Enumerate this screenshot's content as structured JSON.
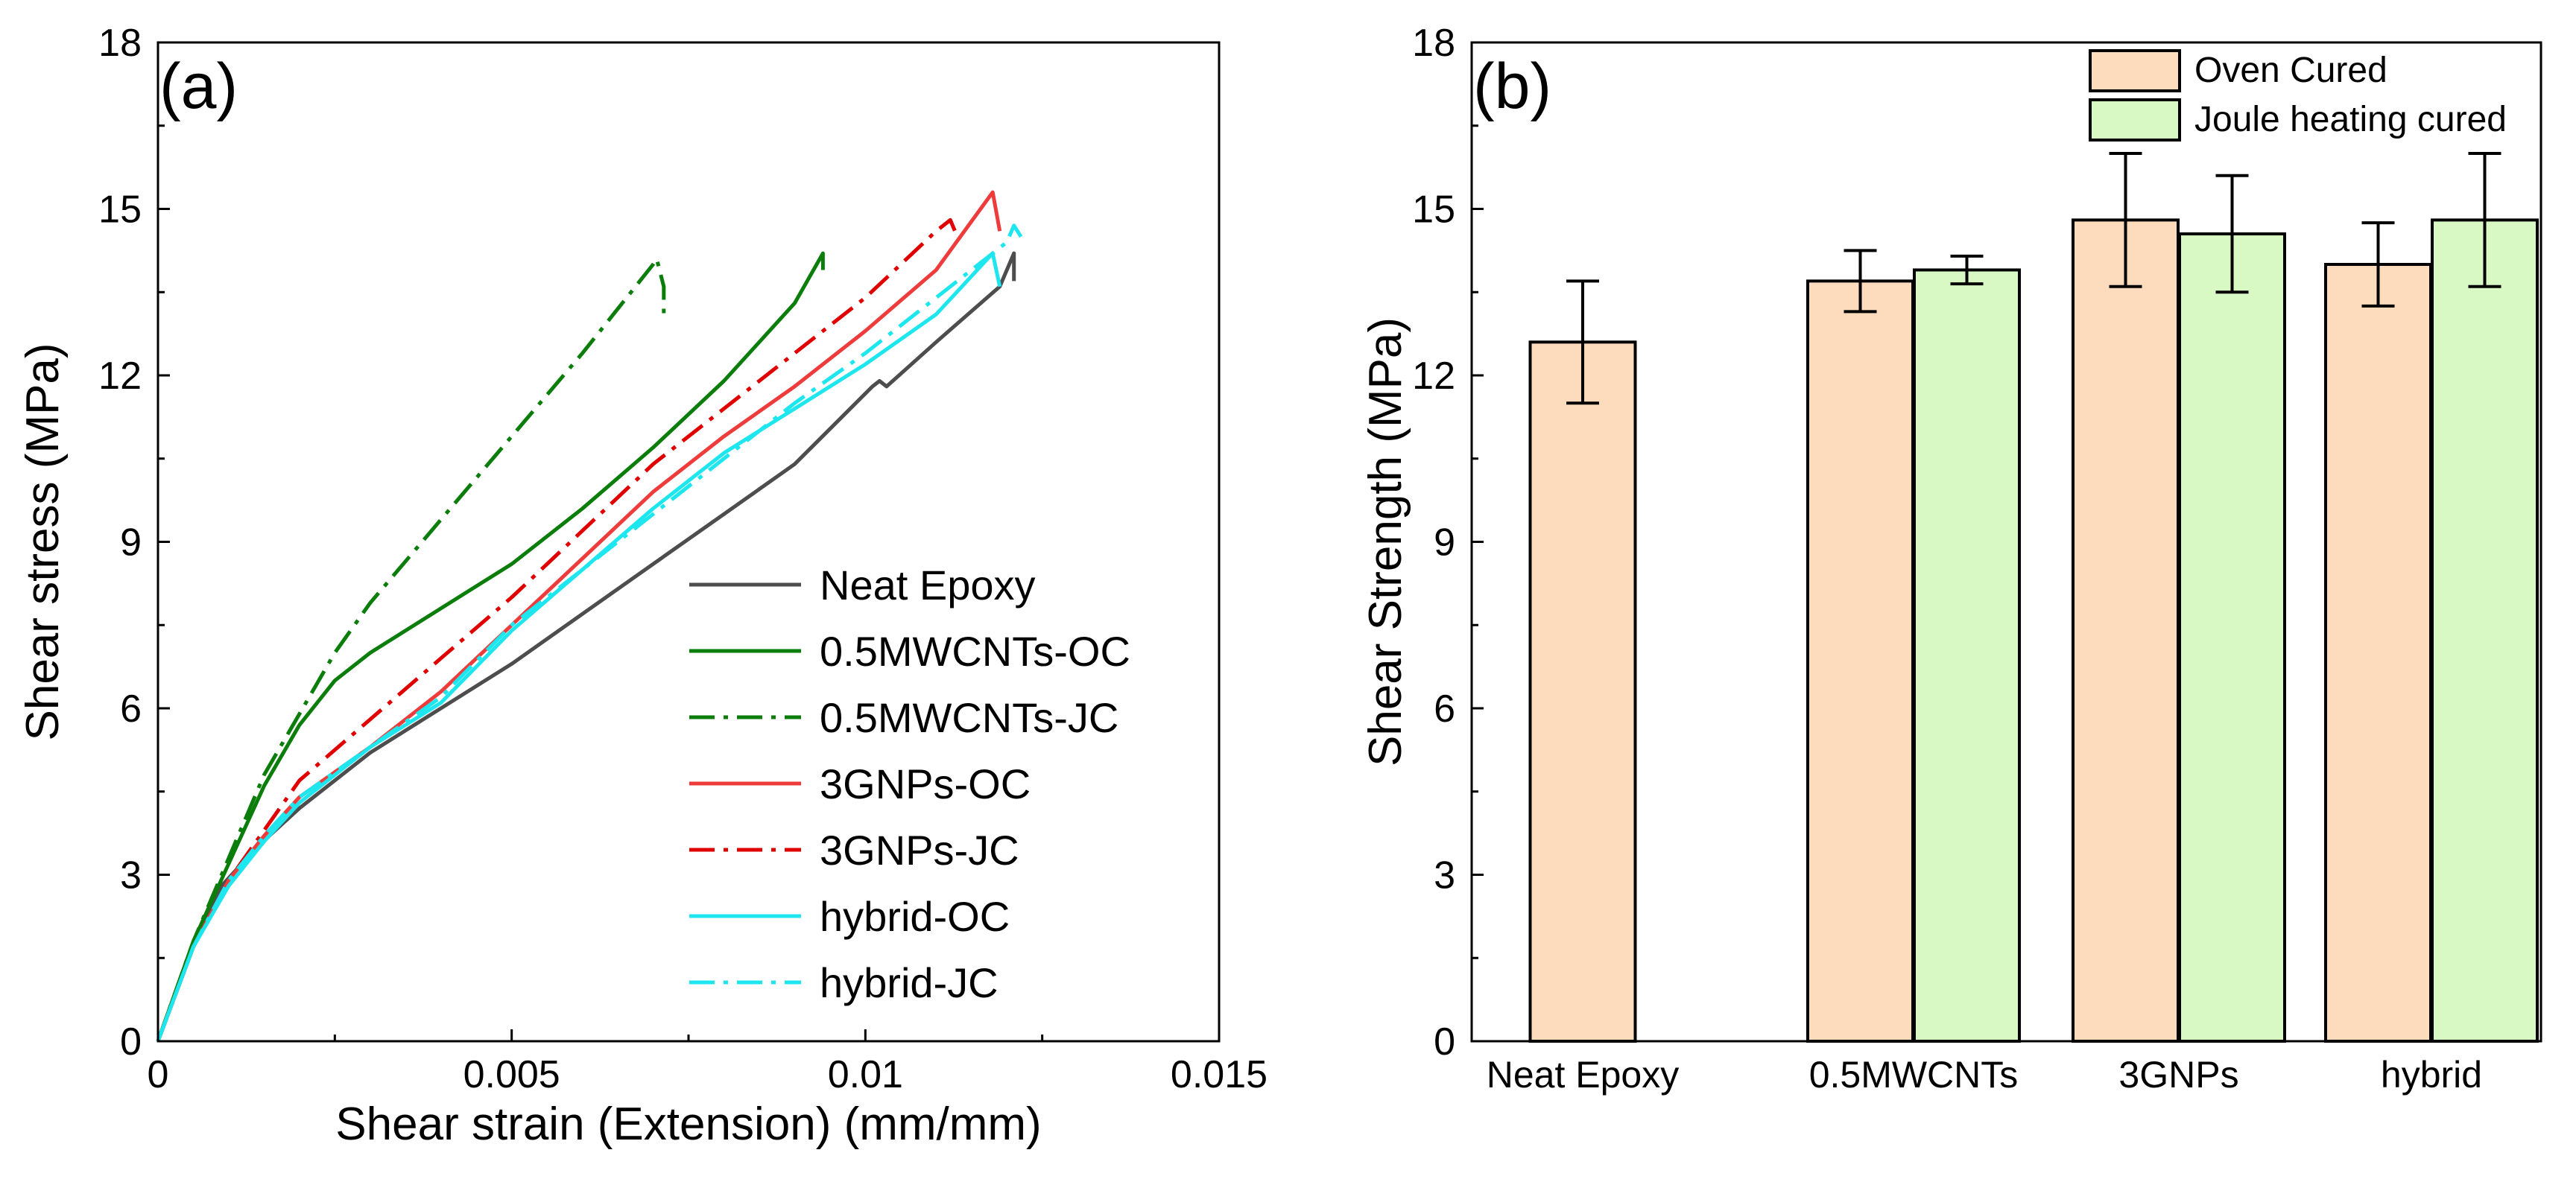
{
  "chart_data": [
    {
      "panel_label": "(a)",
      "type": "line",
      "xlabel": "Shear strain (Extension) (mm/mm)",
      "ylabel": "Shear stress (MPa)",
      "xlim": [
        0,
        0.015
      ],
      "ylim": [
        0,
        18
      ],
      "x_ticks": [
        0,
        0.005,
        0.01,
        0.015
      ],
      "x_tick_labels": [
        "0",
        "0.005",
        "0.01",
        "0.015"
      ],
      "y_ticks": [
        0,
        3,
        6,
        9,
        12,
        15,
        18
      ],
      "y_tick_labels": [
        "0",
        "3",
        "6",
        "9",
        "12",
        "15",
        "18"
      ],
      "legend_position": "lower-right",
      "series": [
        {
          "name": "Neat Epoxy",
          "color": "#4d4d4d",
          "dash": "solid",
          "points": [
            [
              0,
              0
            ],
            [
              0.0005,
              1.7
            ],
            [
              0.0009,
              2.8
            ],
            [
              0.0014,
              3.5
            ],
            [
              0.002,
              4.2
            ],
            [
              0.003,
              5.2
            ],
            [
              0.004,
              6.0
            ],
            [
              0.005,
              6.8
            ],
            [
              0.006,
              7.7
            ],
            [
              0.007,
              8.6
            ],
            [
              0.008,
              9.5
            ],
            [
              0.009,
              10.4
            ],
            [
              0.0101,
              11.8
            ],
            [
              0.0102,
              11.9
            ],
            [
              0.0103,
              11.8
            ],
            [
              0.011,
              12.6
            ],
            [
              0.0119,
              13.6
            ],
            [
              0.0121,
              14.2
            ],
            [
              0.0121,
              13.7
            ]
          ]
        },
        {
          "name": "0.5MWCNTs-OC",
          "color": "#0a7d0a",
          "dash": "solid",
          "points": [
            [
              0,
              0
            ],
            [
              0.0005,
              1.8
            ],
            [
              0.001,
              3.2
            ],
            [
              0.0015,
              4.6
            ],
            [
              0.002,
              5.7
            ],
            [
              0.0025,
              6.5
            ],
            [
              0.003,
              7.0
            ],
            [
              0.004,
              7.8
            ],
            [
              0.005,
              8.6
            ],
            [
              0.006,
              9.6
            ],
            [
              0.007,
              10.7
            ],
            [
              0.008,
              11.9
            ],
            [
              0.009,
              13.3
            ],
            [
              0.0094,
              14.2
            ],
            [
              0.0094,
              13.9
            ]
          ]
        },
        {
          "name": "0.5MWCNTs-JC",
          "color": "#0a7d0a",
          "dash": "dashdot",
          "points": [
            [
              0,
              0
            ],
            [
              0.0005,
              1.8
            ],
            [
              0.001,
              3.3
            ],
            [
              0.0015,
              4.8
            ],
            [
              0.002,
              5.9
            ],
            [
              0.0025,
              7.0
            ],
            [
              0.003,
              7.9
            ],
            [
              0.004,
              9.4
            ],
            [
              0.005,
              10.9
            ],
            [
              0.006,
              12.4
            ],
            [
              0.0065,
              13.2
            ],
            [
              0.007,
              14.0
            ],
            [
              0.00705,
              14.1
            ],
            [
              0.00715,
              13.6
            ],
            [
              0.00715,
              13.1
            ]
          ]
        },
        {
          "name": "3GNPs-OC",
          "color": "#ee3b3b",
          "dash": "solid",
          "points": [
            [
              0,
              0
            ],
            [
              0.0005,
              1.7
            ],
            [
              0.001,
              2.9
            ],
            [
              0.0015,
              3.7
            ],
            [
              0.002,
              4.4
            ],
            [
              0.003,
              5.3
            ],
            [
              0.004,
              6.3
            ],
            [
              0.005,
              7.5
            ],
            [
              0.006,
              8.7
            ],
            [
              0.007,
              9.9
            ],
            [
              0.008,
              10.9
            ],
            [
              0.009,
              11.8
            ],
            [
              0.01,
              12.8
            ],
            [
              0.011,
              13.9
            ],
            [
              0.0118,
              15.3
            ],
            [
              0.0119,
              14.6
            ]
          ]
        },
        {
          "name": "3GNPs-JC",
          "color": "#e00000",
          "dash": "dashdot",
          "points": [
            [
              0,
              0
            ],
            [
              0.0005,
              1.7
            ],
            [
              0.001,
              2.9
            ],
            [
              0.0015,
              3.8
            ],
            [
              0.002,
              4.7
            ],
            [
              0.003,
              5.8
            ],
            [
              0.004,
              6.9
            ],
            [
              0.005,
              8.0
            ],
            [
              0.006,
              9.2
            ],
            [
              0.007,
              10.4
            ],
            [
              0.008,
              11.4
            ],
            [
              0.009,
              12.4
            ],
            [
              0.01,
              13.4
            ],
            [
              0.011,
              14.6
            ],
            [
              0.0112,
              14.8
            ],
            [
              0.0113,
              14.5
            ]
          ]
        },
        {
          "name": "hybrid-OC",
          "color": "#1ee6ee",
          "dash": "solid",
          "points": [
            [
              0,
              0
            ],
            [
              0.0005,
              1.7
            ],
            [
              0.001,
              2.8
            ],
            [
              0.0015,
              3.6
            ],
            [
              0.002,
              4.3
            ],
            [
              0.003,
              5.3
            ],
            [
              0.004,
              6.1
            ],
            [
              0.005,
              7.4
            ],
            [
              0.006,
              8.5
            ],
            [
              0.007,
              9.6
            ],
            [
              0.008,
              10.6
            ],
            [
              0.009,
              11.4
            ],
            [
              0.01,
              12.2
            ],
            [
              0.011,
              13.1
            ],
            [
              0.0118,
              14.2
            ],
            [
              0.0119,
              13.6
            ]
          ]
        },
        {
          "name": "hybrid-JC",
          "color": "#1ee6ee",
          "dash": "dashdot",
          "points": [
            [
              0,
              0
            ],
            [
              0.0005,
              1.7
            ],
            [
              0.001,
              2.9
            ],
            [
              0.0015,
              3.7
            ],
            [
              0.002,
              4.4
            ],
            [
              0.003,
              5.3
            ],
            [
              0.004,
              6.2
            ],
            [
              0.005,
              7.5
            ],
            [
              0.006,
              8.5
            ],
            [
              0.007,
              9.5
            ],
            [
              0.008,
              10.5
            ],
            [
              0.009,
              11.5
            ],
            [
              0.01,
              12.4
            ],
            [
              0.011,
              13.4
            ],
            [
              0.012,
              14.4
            ],
            [
              0.0121,
              14.7
            ],
            [
              0.0122,
              14.5
            ]
          ]
        }
      ]
    },
    {
      "panel_label": "(b)",
      "type": "bar",
      "xlabel": "",
      "ylabel": "Shear Strength (MPa)",
      "ylim": [
        0,
        18
      ],
      "y_ticks": [
        0,
        3,
        6,
        9,
        12,
        15,
        18
      ],
      "y_tick_labels": [
        "0",
        "3",
        "6",
        "9",
        "12",
        "15",
        "18"
      ],
      "categories": [
        "Neat Epoxy",
        "0.5MWCNTs",
        "3GNPs",
        "hybrid"
      ],
      "legend_position": "top-right",
      "series": [
        {
          "name": "Oven Cured",
          "color": "#fcdcbc",
          "values": [
            12.6,
            13.7,
            14.8,
            14.0
          ],
          "errors": [
            1.1,
            0.55,
            1.2,
            0.75
          ]
        },
        {
          "name": "Joule heating cured",
          "color": "#d8f9c4",
          "values": [
            null,
            13.9,
            14.55,
            14.8
          ],
          "errors": [
            null,
            0.25,
            1.05,
            1.2
          ]
        }
      ]
    }
  ]
}
